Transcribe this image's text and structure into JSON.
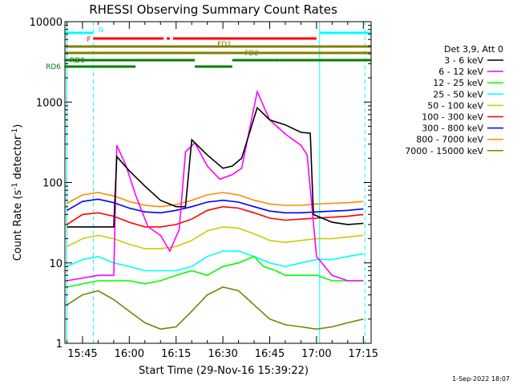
{
  "chart_data": {
    "type": "line",
    "title": "RHESSI Observing Summary Count Rates",
    "xlabel": "Start Time (29-Nov-16 15:39:22)",
    "ylabel_main": "Count Rate (s",
    "ylabel_sup1": "-1",
    "ylabel_mid": " detector",
    "ylabel_sup2": "-1",
    "ylabel_end": ")",
    "y_scale": "log",
    "xlim": [
      "15:39:22",
      "17:17:30"
    ],
    "ylim": [
      1,
      10000
    ],
    "x_ticks": [
      "15:45",
      "16:00",
      "16:15",
      "16:30",
      "16:45",
      "17:00",
      "17:15"
    ],
    "y_ticks": [
      "1",
      "10",
      "100",
      "1000",
      "10000"
    ],
    "footer_date": "1-Sep-2022 18:07",
    "legend_title": "Det 3,9, Att 0",
    "legend_position": "right",
    "series": [
      {
        "name": "3 - 6 keV",
        "color": "#000000",
        "points": [
          [
            "15:40",
            28
          ],
          [
            "15:55",
            28
          ],
          [
            "15:56",
            210
          ],
          [
            "16:00",
            140
          ],
          [
            "16:05",
            90
          ],
          [
            "16:10",
            60
          ],
          [
            "16:15",
            50
          ],
          [
            "16:18",
            50
          ],
          [
            "16:20",
            340
          ],
          [
            "16:25",
            220
          ],
          [
            "16:30",
            150
          ],
          [
            "16:33",
            160
          ],
          [
            "16:36",
            200
          ],
          [
            "16:41",
            850
          ],
          [
            "16:45",
            600
          ],
          [
            "16:50",
            520
          ],
          [
            "16:55",
            420
          ],
          [
            "16:58",
            410
          ],
          [
            "16:59",
            40
          ],
          [
            "17:05",
            32
          ],
          [
            "17:10",
            30
          ],
          [
            "17:15",
            31
          ]
        ]
      },
      {
        "name": "6 - 12 keV",
        "color": "#ff00ff",
        "points": [
          [
            "15:40",
            6
          ],
          [
            "15:50",
            7
          ],
          [
            "15:55",
            7
          ],
          [
            "15:56",
            290
          ],
          [
            "15:59",
            160
          ],
          [
            "16:02",
            70
          ],
          [
            "16:06",
            28
          ],
          [
            "16:10",
            22
          ],
          [
            "16:13",
            14
          ],
          [
            "16:16",
            26
          ],
          [
            "16:18",
            240
          ],
          [
            "16:21",
            310
          ],
          [
            "16:25",
            160
          ],
          [
            "16:29",
            110
          ],
          [
            "16:33",
            125
          ],
          [
            "16:36",
            150
          ],
          [
            "16:41",
            1350
          ],
          [
            "16:45",
            600
          ],
          [
            "16:50",
            400
          ],
          [
            "16:55",
            290
          ],
          [
            "16:57",
            220
          ],
          [
            "17:00",
            12
          ],
          [
            "17:05",
            7
          ],
          [
            "17:10",
            6
          ],
          [
            "17:15",
            6
          ]
        ]
      },
      {
        "name": "12 - 25 keV",
        "color": "#00ff00",
        "points": [
          [
            "15:40",
            5
          ],
          [
            "15:50",
            6
          ],
          [
            "15:55",
            6
          ],
          [
            "16:00",
            6
          ],
          [
            "16:05",
            5.5
          ],
          [
            "16:10",
            6
          ],
          [
            "16:15",
            7
          ],
          [
            "16:20",
            8
          ],
          [
            "16:25",
            7
          ],
          [
            "16:30",
            9
          ],
          [
            "16:35",
            10
          ],
          [
            "16:40",
            12
          ],
          [
            "16:43",
            9
          ],
          [
            "16:47",
            8
          ],
          [
            "16:50",
            7
          ],
          [
            "16:55",
            7
          ],
          [
            "17:00",
            7
          ],
          [
            "17:05",
            6
          ],
          [
            "17:10",
            6
          ],
          [
            "17:15",
            6
          ]
        ]
      },
      {
        "name": "25 - 50 keV",
        "color": "#00ffff",
        "points": [
          [
            "15:40",
            9
          ],
          [
            "15:45",
            11
          ],
          [
            "15:50",
            12
          ],
          [
            "15:55",
            10
          ],
          [
            "16:00",
            9
          ],
          [
            "16:05",
            8
          ],
          [
            "16:10",
            8
          ],
          [
            "16:15",
            8
          ],
          [
            "16:20",
            9
          ],
          [
            "16:25",
            12
          ],
          [
            "16:30",
            14
          ],
          [
            "16:35",
            14
          ],
          [
            "16:40",
            12
          ],
          [
            "16:45",
            10
          ],
          [
            "16:50",
            9
          ],
          [
            "16:55",
            10
          ],
          [
            "17:00",
            11
          ],
          [
            "17:05",
            11
          ],
          [
            "17:10",
            12
          ],
          [
            "17:15",
            13
          ]
        ]
      },
      {
        "name": "50 - 100 keV",
        "color": "#cccc00",
        "points": [
          [
            "15:40",
            16
          ],
          [
            "15:45",
            20
          ],
          [
            "15:50",
            22
          ],
          [
            "15:55",
            20
          ],
          [
            "16:00",
            17
          ],
          [
            "16:05",
            15
          ],
          [
            "16:10",
            15
          ],
          [
            "16:15",
            16
          ],
          [
            "16:20",
            19
          ],
          [
            "16:25",
            25
          ],
          [
            "16:30",
            28
          ],
          [
            "16:35",
            27
          ],
          [
            "16:40",
            23
          ],
          [
            "16:45",
            19
          ],
          [
            "16:50",
            18
          ],
          [
            "16:55",
            19
          ],
          [
            "17:00",
            20
          ],
          [
            "17:05",
            20
          ],
          [
            "17:10",
            21
          ],
          [
            "17:15",
            22
          ]
        ]
      },
      {
        "name": "100 - 300 keV",
        "color": "#ff0000",
        "points": [
          [
            "15:40",
            30
          ],
          [
            "15:45",
            40
          ],
          [
            "15:50",
            42
          ],
          [
            "15:55",
            38
          ],
          [
            "16:00",
            32
          ],
          [
            "16:05",
            28
          ],
          [
            "16:10",
            28
          ],
          [
            "16:15",
            30
          ],
          [
            "16:20",
            35
          ],
          [
            "16:25",
            45
          ],
          [
            "16:30",
            50
          ],
          [
            "16:35",
            48
          ],
          [
            "16:40",
            42
          ],
          [
            "16:45",
            36
          ],
          [
            "16:50",
            34
          ],
          [
            "16:55",
            35
          ],
          [
            "17:00",
            36
          ],
          [
            "17:05",
            37
          ],
          [
            "17:10",
            38
          ],
          [
            "17:15",
            40
          ]
        ]
      },
      {
        "name": "300 - 800 keV",
        "color": "#0000ff",
        "points": [
          [
            "15:40",
            45
          ],
          [
            "15:45",
            58
          ],
          [
            "15:50",
            62
          ],
          [
            "15:55",
            56
          ],
          [
            "16:00",
            48
          ],
          [
            "16:05",
            43
          ],
          [
            "16:10",
            42
          ],
          [
            "16:15",
            45
          ],
          [
            "16:20",
            50
          ],
          [
            "16:25",
            57
          ],
          [
            "16:30",
            60
          ],
          [
            "16:35",
            57
          ],
          [
            "16:40",
            50
          ],
          [
            "16:45",
            44
          ],
          [
            "16:50",
            42
          ],
          [
            "16:55",
            42
          ],
          [
            "17:00",
            43
          ],
          [
            "17:05",
            44
          ],
          [
            "17:10",
            45
          ],
          [
            "17:15",
            47
          ]
        ]
      },
      {
        "name": "800 - 7000 keV",
        "color": "#ff8c00",
        "points": [
          [
            "15:40",
            55
          ],
          [
            "15:45",
            70
          ],
          [
            "15:50",
            75
          ],
          [
            "15:55",
            68
          ],
          [
            "16:00",
            58
          ],
          [
            "16:05",
            52
          ],
          [
            "16:10",
            50
          ],
          [
            "16:15",
            53
          ],
          [
            "16:20",
            60
          ],
          [
            "16:25",
            70
          ],
          [
            "16:30",
            75
          ],
          [
            "16:35",
            70
          ],
          [
            "16:40",
            60
          ],
          [
            "16:45",
            54
          ],
          [
            "16:50",
            52
          ],
          [
            "16:55",
            52
          ],
          [
            "17:00",
            54
          ],
          [
            "17:05",
            55
          ],
          [
            "17:10",
            56
          ],
          [
            "17:15",
            58
          ]
        ]
      },
      {
        "name": "7000 - 15000 keV",
        "color": "#808000",
        "points": [
          [
            "15:40",
            3
          ],
          [
            "15:45",
            4
          ],
          [
            "15:50",
            4.5
          ],
          [
            "15:55",
            3.5
          ],
          [
            "16:00",
            2.5
          ],
          [
            "16:05",
            1.8
          ],
          [
            "16:10",
            1.5
          ],
          [
            "16:15",
            1.6
          ],
          [
            "16:20",
            2.5
          ],
          [
            "16:25",
            4
          ],
          [
            "16:30",
            5
          ],
          [
            "16:35",
            4.5
          ],
          [
            "16:40",
            3
          ],
          [
            "16:45",
            2
          ],
          [
            "16:50",
            1.7
          ],
          [
            "16:55",
            1.6
          ],
          [
            "17:00",
            1.5
          ],
          [
            "17:05",
            1.6
          ],
          [
            "17:10",
            1.8
          ],
          [
            "17:15",
            2
          ]
        ]
      }
    ],
    "flag_rows": [
      {
        "label": "N",
        "color": "#00ffff",
        "segments": [
          [
            "15:39:22",
            "15:48:30"
          ],
          [
            "17:01:00",
            "17:17:30"
          ]
        ]
      },
      {
        "label": "F",
        "color": "#ff0000",
        "segments": [
          [
            "15:48:30",
            "16:11:00"
          ],
          [
            "16:12:00",
            "16:13:00"
          ],
          [
            "16:14:00",
            "17:00:00"
          ]
        ]
      },
      {
        "label": "FD1",
        "color": "#808000",
        "segments": [
          [
            "15:39:22",
            "17:17:30"
          ]
        ]
      },
      {
        "label": "FD2",
        "color": "#808000",
        "segments": [
          [
            "15:39:22",
            "17:17:30"
          ]
        ]
      },
      {
        "label": "RD0",
        "color": "#008000",
        "segments": [
          [
            "15:39:22",
            "16:02:00"
          ],
          [
            "16:02:00",
            "16:21:00"
          ],
          [
            "16:33:00",
            "16:48:00"
          ],
          [
            "16:48:00",
            "17:17:30"
          ]
        ]
      },
      {
        "label": "RD6",
        "color": "#008000",
        "segments": [
          [
            "15:39:22",
            "16:02:00"
          ],
          [
            "16:21:00",
            "16:33:00"
          ]
        ]
      }
    ],
    "vertical_markers": [
      {
        "time": "15:40:00",
        "style": "solid",
        "color": "#00ffff"
      },
      {
        "time": "15:48:30",
        "style": "dashed",
        "color": "#00ffff"
      },
      {
        "time": "17:01:00",
        "style": "solid",
        "color": "#00ffff"
      },
      {
        "time": "17:15:30",
        "style": "dashed",
        "color": "#00ffff"
      }
    ]
  }
}
